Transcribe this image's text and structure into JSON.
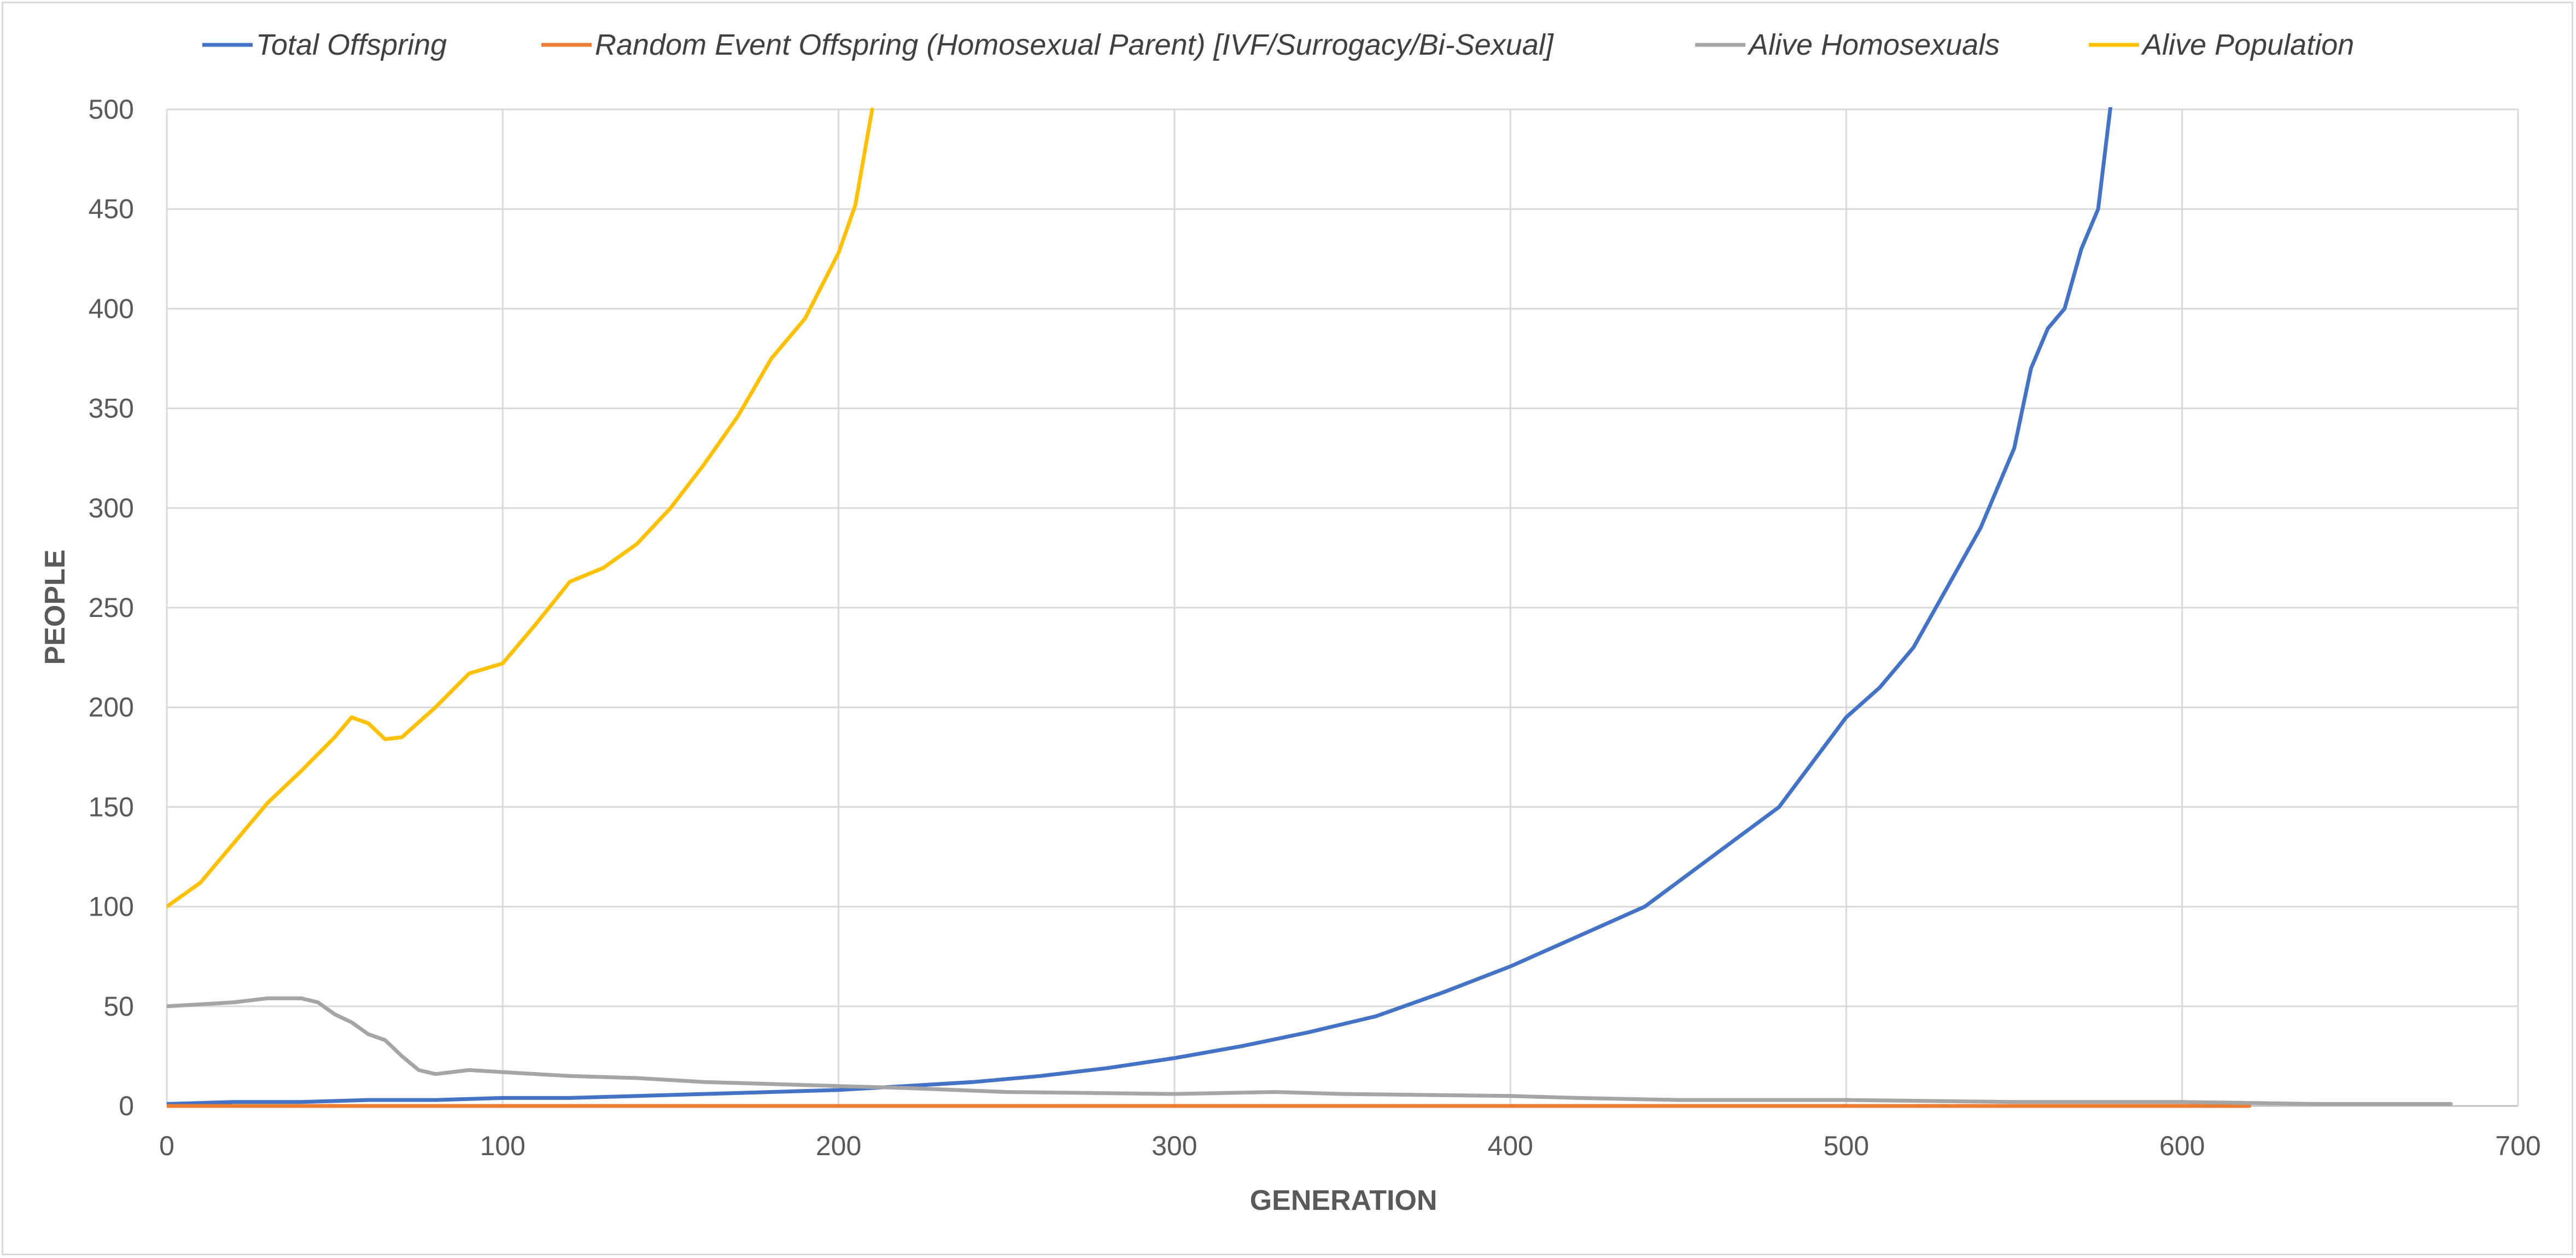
{
  "chart_data": {
    "type": "line",
    "title": "",
    "xlabel": "GENERATION",
    "ylabel": "PEOPLE",
    "xlim": [
      0,
      700
    ],
    "ylim": [
      0,
      500
    ],
    "x_ticks": [
      0,
      100,
      200,
      300,
      400,
      500,
      600,
      700
    ],
    "y_ticks": [
      0,
      50,
      100,
      150,
      200,
      250,
      300,
      350,
      400,
      450,
      500
    ],
    "grid": "major gridlines on both axes",
    "legend_position": "top",
    "series": [
      {
        "name": "Total Offspring",
        "color": "#4472c4",
        "points": [
          [
            0,
            1
          ],
          [
            20,
            2
          ],
          [
            40,
            2
          ],
          [
            60,
            3
          ],
          [
            80,
            3
          ],
          [
            100,
            4
          ],
          [
            120,
            4
          ],
          [
            140,
            5
          ],
          [
            160,
            6
          ],
          [
            180,
            7
          ],
          [
            200,
            8
          ],
          [
            220,
            10
          ],
          [
            240,
            12
          ],
          [
            260,
            15
          ],
          [
            280,
            19
          ],
          [
            300,
            24
          ],
          [
            320,
            30
          ],
          [
            340,
            37
          ],
          [
            360,
            45
          ],
          [
            380,
            57
          ],
          [
            400,
            70
          ],
          [
            420,
            85
          ],
          [
            440,
            100
          ],
          [
            460,
            125
          ],
          [
            480,
            150
          ],
          [
            500,
            195
          ],
          [
            510,
            210
          ],
          [
            520,
            230
          ],
          [
            530,
            260
          ],
          [
            540,
            290
          ],
          [
            550,
            330
          ],
          [
            555,
            370
          ],
          [
            560,
            390
          ],
          [
            565,
            400
          ],
          [
            570,
            430
          ],
          [
            575,
            450
          ],
          [
            580,
            520
          ]
        ]
      },
      {
        "name": "Random Event Offspring (Homosexual Parent) [IVF/Surrogacy/Bi-Sexual]",
        "color": "#ed7d31",
        "points": [
          [
            0,
            0
          ],
          [
            100,
            0
          ],
          [
            200,
            0
          ],
          [
            300,
            0
          ],
          [
            400,
            0
          ],
          [
            500,
            0
          ],
          [
            600,
            0
          ],
          [
            620,
            0
          ]
        ]
      },
      {
        "name": "Alive Homosexuals",
        "color": "#a5a5a5",
        "points": [
          [
            0,
            50
          ],
          [
            10,
            51
          ],
          [
            20,
            52
          ],
          [
            30,
            54
          ],
          [
            40,
            54
          ],
          [
            45,
            52
          ],
          [
            50,
            46
          ],
          [
            55,
            42
          ],
          [
            60,
            36
          ],
          [
            65,
            33
          ],
          [
            70,
            25
          ],
          [
            75,
            18
          ],
          [
            80,
            16
          ],
          [
            90,
            18
          ],
          [
            100,
            17
          ],
          [
            110,
            16
          ],
          [
            120,
            15
          ],
          [
            140,
            14
          ],
          [
            160,
            12
          ],
          [
            180,
            11
          ],
          [
            200,
            10
          ],
          [
            220,
            9
          ],
          [
            250,
            7
          ],
          [
            300,
            6
          ],
          [
            330,
            7
          ],
          [
            350,
            6
          ],
          [
            400,
            5
          ],
          [
            420,
            4
          ],
          [
            450,
            3
          ],
          [
            500,
            3
          ],
          [
            550,
            2
          ],
          [
            600,
            2
          ],
          [
            640,
            1
          ],
          [
            680,
            1
          ]
        ]
      },
      {
        "name": "Alive Population",
        "color": "#ffc000",
        "points": [
          [
            0,
            100
          ],
          [
            10,
            112
          ],
          [
            20,
            132
          ],
          [
            30,
            152
          ],
          [
            40,
            168
          ],
          [
            50,
            185
          ],
          [
            55,
            195
          ],
          [
            60,
            192
          ],
          [
            65,
            184
          ],
          [
            70,
            185
          ],
          [
            80,
            200
          ],
          [
            90,
            217
          ],
          [
            100,
            222
          ],
          [
            110,
            242
          ],
          [
            120,
            263
          ],
          [
            130,
            270
          ],
          [
            140,
            282
          ],
          [
            150,
            300
          ],
          [
            160,
            322
          ],
          [
            170,
            346
          ],
          [
            180,
            375
          ],
          [
            190,
            395
          ],
          [
            200,
            428
          ],
          [
            205,
            452
          ],
          [
            210,
            500
          ]
        ]
      }
    ]
  }
}
